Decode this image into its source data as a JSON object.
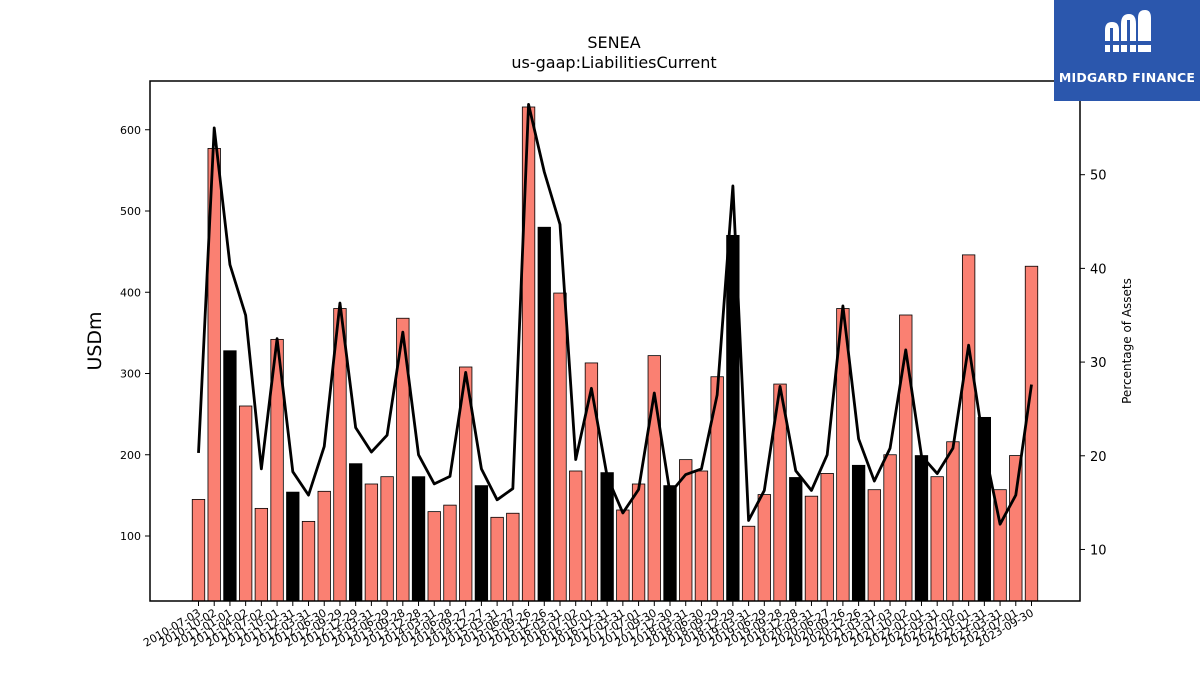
{
  "chart_data": {
    "type": "bar",
    "title": "SENEA",
    "subtitle": "us-gaap:LiabilitiesCurrent",
    "ylabel": "USDm",
    "y2label": "Percentage of Assets",
    "ylim": [
      20,
      660
    ],
    "y2lim": [
      4.5,
      60
    ],
    "yticks": [
      100,
      200,
      300,
      400,
      500,
      600
    ],
    "y2ticks": [
      10,
      20,
      30,
      40,
      50
    ],
    "colors": {
      "bar": "#fa8072",
      "highlight": "#000000",
      "line": "#000000"
    },
    "categories": [
      "2010-07-03",
      "2010-10-02",
      "2011-01-01",
      "2011-04-02",
      "2011-07-02",
      "2011-10-01",
      "2011-12-31",
      "2012-03-31",
      "2012-06-30",
      "2012-09-29",
      "2012-12-29",
      "2013-03-31",
      "2013-06-29",
      "2013-09-28",
      "2013-12-28",
      "2014-03-31",
      "2014-06-28",
      "2014-09-27",
      "2014-12-27",
      "2015-03-31",
      "2015-06-27",
      "2015-09-26",
      "2015-12-26",
      "2016-03-31",
      "2016-07-02",
      "2016-10-01",
      "2016-12-31",
      "2017-03-31",
      "2017-07-01",
      "2017-09-30",
      "2017-12-30",
      "2018-03-31",
      "2018-06-30",
      "2018-09-29",
      "2018-12-29",
      "2019-03-31",
      "2019-06-29",
      "2019-09-28",
      "2019-12-28",
      "2020-03-31",
      "2020-06-27",
      "2020-09-26",
      "2020-12-26",
      "2021-03-31",
      "2021-07-03",
      "2021-10-02",
      "2022-01-01",
      "2022-03-31",
      "2022-07-02",
      "2022-10-01",
      "2022-12-31",
      "2023-03-31",
      "2023-07-01",
      "2023-09-30"
    ],
    "series": [
      {
        "type": "bar",
        "values": [
          145,
          577,
          328,
          260,
          134,
          342,
          154,
          118,
          155,
          380,
          189,
          164,
          173,
          368,
          173,
          130,
          138,
          308,
          162,
          123,
          128,
          628,
          480,
          399,
          180,
          313,
          178,
          132,
          164,
          322,
          162,
          194,
          180,
          296,
          470,
          112,
          151,
          287,
          172,
          149,
          177,
          380,
          187,
          157,
          200,
          372,
          199,
          173,
          216,
          446,
          246,
          157,
          199,
          432
        ],
        "highlight": [
          false,
          false,
          true,
          false,
          false,
          false,
          true,
          false,
          false,
          false,
          true,
          false,
          false,
          false,
          true,
          false,
          false,
          false,
          true,
          false,
          false,
          false,
          true,
          false,
          false,
          false,
          true,
          false,
          false,
          false,
          true,
          false,
          false,
          false,
          true,
          false,
          false,
          false,
          true,
          false,
          false,
          false,
          true,
          false,
          false,
          false,
          true,
          false,
          false,
          false,
          true,
          false,
          false,
          false
        ]
      },
      {
        "type": "line",
        "axis": "right",
        "values": [
          20.3,
          55.0,
          40.4,
          35.0,
          18.6,
          32.5,
          18.3,
          15.8,
          21.0,
          36.3,
          23.0,
          20.4,
          22.2,
          33.2,
          20.1,
          17.0,
          17.8,
          28.9,
          18.6,
          15.3,
          16.5,
          57.5,
          50.3,
          44.7,
          19.6,
          27.2,
          17.8,
          13.9,
          16.4,
          26.7,
          16.0,
          18.0,
          18.6,
          26.5,
          48.8,
          13.1,
          16.3,
          27.4,
          18.4,
          16.3,
          20.1,
          36.0,
          21.8,
          17.3,
          20.8,
          31.3,
          20.0,
          18.1,
          20.8,
          31.8,
          20.8,
          12.7,
          15.8,
          27.6
        ]
      }
    ]
  },
  "logo": {
    "name": "MIDGARD FINANCE"
  }
}
